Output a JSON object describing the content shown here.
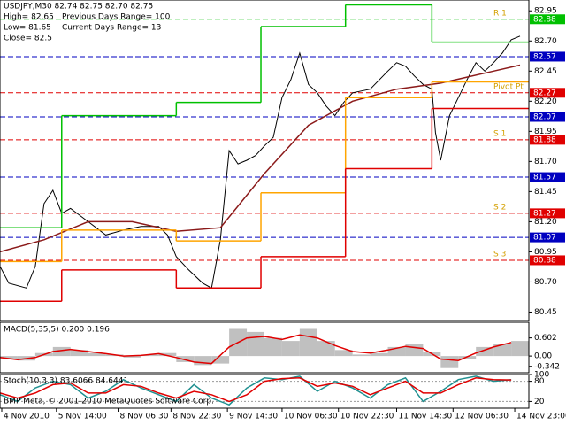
{
  "header": {
    "symbol_line": "USDJPY,M30  82.74 82.75 82.70 82.75",
    "high": "High= 82.65",
    "low": "Low= 81.65",
    "close": "Close= 82.5",
    "prev_range": "Previous Days Range= 100",
    "curr_range": "Current Days Range= 13"
  },
  "footer": "BMP Meta, © 2001-2010 MetaQuotes Software Corp.",
  "chart_data": [
    {
      "type": "price",
      "xlim": [
        0,
        300
      ],
      "xticks": [
        {
          "value": 1,
          "label": "4 Nov 2010"
        },
        {
          "value": 32,
          "label": "5 Nov 14:00"
        },
        {
          "value": 67,
          "label": "8 Nov 06:30"
        },
        {
          "value": 97,
          "label": "8 Nov 22:30"
        },
        {
          "value": 129,
          "label": "9 Nov 14:30"
        },
        {
          "value": 160,
          "label": "10 Nov 06:30"
        },
        {
          "value": 192,
          "label": "10 Nov 22:30"
        },
        {
          "value": 225,
          "label": "11 Nov 14:30"
        },
        {
          "value": 257,
          "label": "12 Nov 06:30"
        },
        {
          "value": 292,
          "label": "14 Nov 23:00"
        }
      ],
      "ylim": [
        80.38,
        83.04
      ],
      "yticks": [
        82.95,
        {
          "value": 82.7,
          "label": "82.70"
        },
        82.45,
        {
          "value": 82.2,
          "label": "82.20"
        },
        81.95,
        {
          "value": 81.7,
          "label": "81.70"
        },
        81.45,
        {
          "value": 81.2,
          "label": "81.20"
        },
        80.95,
        {
          "value": 80.7,
          "label": "80.70"
        },
        80.45
      ],
      "day_bounds": [
        0,
        35,
        100,
        148,
        196,
        245,
        300
      ],
      "series": [
        {
          "style": "line",
          "color": "#000000",
          "x": [
            0,
            5,
            15,
            20,
            25,
            30,
            35,
            40,
            50,
            60,
            70,
            80,
            90,
            95,
            100,
            107,
            115,
            120,
            125,
            130,
            135,
            140,
            145,
            150,
            155,
            160,
            165,
            170,
            175,
            180,
            185,
            190,
            195,
            200,
            210,
            220,
            225,
            230,
            235,
            240,
            245,
            247,
            250,
            255,
            260,
            265,
            270,
            275,
            280,
            285,
            290,
            295
          ],
          "values": [
            80.83,
            80.69,
            80.65,
            80.83,
            81.35,
            81.46,
            81.27,
            81.31,
            81.2,
            81.09,
            81.13,
            81.16,
            81.16,
            81.09,
            80.91,
            80.8,
            80.69,
            80.65,
            81.05,
            81.79,
            81.68,
            81.71,
            81.75,
            81.83,
            81.9,
            82.23,
            82.38,
            82.6,
            82.34,
            82.27,
            82.16,
            82.08,
            82.19,
            82.27,
            82.3,
            82.45,
            82.52,
            82.49,
            82.41,
            82.34,
            82.3,
            81.94,
            81.71,
            82.08,
            82.23,
            82.38,
            82.52,
            82.45,
            82.52,
            82.6,
            82.71,
            82.74
          ]
        },
        {
          "style": "line",
          "color": "#8b1a1a",
          "x": [
            0,
            25,
            50,
            75,
            100,
            125,
            150,
            175,
            200,
            225,
            250,
            280,
            295
          ],
          "values": [
            80.95,
            81.05,
            81.2,
            81.2,
            81.12,
            81.15,
            81.6,
            82.0,
            82.2,
            82.3,
            82.35,
            82.45,
            82.5
          ]
        },
        {
          "style": "step",
          "color": "#00c000",
          "values": [
            81.15,
            82.08,
            82.19,
            82.82,
            83.0,
            82.69
          ]
        },
        {
          "style": "step",
          "color": "#ffa500",
          "values": [
            80.87,
            81.13,
            81.04,
            81.44,
            82.23,
            82.36
          ]
        },
        {
          "style": "step",
          "color": "#e00000",
          "values": [
            80.54,
            80.8,
            80.65,
            80.91,
            81.64,
            82.14
          ]
        }
      ],
      "levels": [
        {
          "value": 82.88,
          "color": "#00c000",
          "label": "R 1"
        },
        {
          "value": 82.57,
          "color": "#0000c0"
        },
        {
          "value": 82.27,
          "color": "#e00000",
          "label": "Pivot Pt"
        },
        {
          "value": 82.07,
          "color": "#0000c0"
        },
        {
          "value": 81.88,
          "color": "#e00000",
          "label": "S 1"
        },
        {
          "value": 81.57,
          "color": "#0000c0"
        },
        {
          "value": 81.27,
          "color": "#e00000",
          "label": "S 2"
        },
        {
          "value": 81.07,
          "color": "#0000c0"
        },
        {
          "value": 80.88,
          "color": "#e00000",
          "label": "S 3"
        }
      ]
    },
    {
      "type": "macd",
      "title": "MACD(5,35,5) 0.200 0.196",
      "xlim": [
        0,
        300
      ],
      "x": [
        0,
        10,
        20,
        30,
        40,
        50,
        60,
        70,
        80,
        90,
        100,
        110,
        120,
        130,
        140,
        150,
        160,
        170,
        180,
        190,
        200,
        210,
        220,
        230,
        240,
        250,
        260,
        270,
        280,
        290
      ],
      "ylim": [
        -0.555,
        1.12
      ],
      "yticks": [
        0.602,
        {
          "value": 0,
          "label": "0.00"
        },
        -0.342
      ],
      "series": [
        {
          "style": "bar",
          "color": "#c0c0c0",
          "values": [
            -0.1,
            -0.15,
            0.1,
            0.3,
            0.2,
            0.1,
            0.05,
            -0.05,
            0.05,
            0.1,
            -0.2,
            -0.3,
            -0.25,
            0.9,
            0.8,
            0.6,
            0.5,
            0.9,
            0.5,
            0.2,
            0.05,
            0.1,
            0.3,
            0.4,
            0.15,
            -0.4,
            -0.1,
            0.3,
            0.4,
            0.5
          ]
        },
        {
          "style": "line",
          "color": "#e00000",
          "values": [
            -0.05,
            -0.12,
            -0.05,
            0.15,
            0.22,
            0.15,
            0.08,
            0,
            0.02,
            0.08,
            -0.05,
            -0.2,
            -0.25,
            0.3,
            0.6,
            0.65,
            0.55,
            0.7,
            0.6,
            0.35,
            0.15,
            0.1,
            0.2,
            0.32,
            0.25,
            -0.1,
            -0.15,
            0.1,
            0.3,
            0.45
          ]
        }
      ]
    },
    {
      "type": "stoch",
      "title": "Stoch(10,3,3) 83.6066 84.6441",
      "xlim": [
        0,
        300
      ],
      "x": [
        0,
        10,
        20,
        30,
        40,
        50,
        60,
        70,
        80,
        90,
        100,
        110,
        120,
        130,
        140,
        150,
        160,
        170,
        180,
        190,
        200,
        210,
        220,
        230,
        240,
        250,
        260,
        270,
        280,
        290
      ],
      "ylim": [
        0,
        100
      ],
      "yticks": [
        100,
        80,
        20
      ],
      "series": [
        {
          "style": "line",
          "color": "#209090",
          "values": [
            40,
            20,
            60,
            80,
            70,
            30,
            50,
            85,
            60,
            40,
            20,
            70,
            30,
            10,
            60,
            90,
            85,
            95,
            50,
            80,
            60,
            30,
            70,
            90,
            20,
            50,
            85,
            95,
            80,
            85
          ]
        },
        {
          "style": "line",
          "color": "#e00000",
          "values": [
            45,
            30,
            45,
            70,
            75,
            45,
            45,
            70,
            65,
            45,
            30,
            50,
            40,
            20,
            40,
            80,
            88,
            90,
            65,
            75,
            65,
            40,
            60,
            80,
            45,
            45,
            70,
            90,
            85,
            84
          ]
        }
      ]
    }
  ]
}
